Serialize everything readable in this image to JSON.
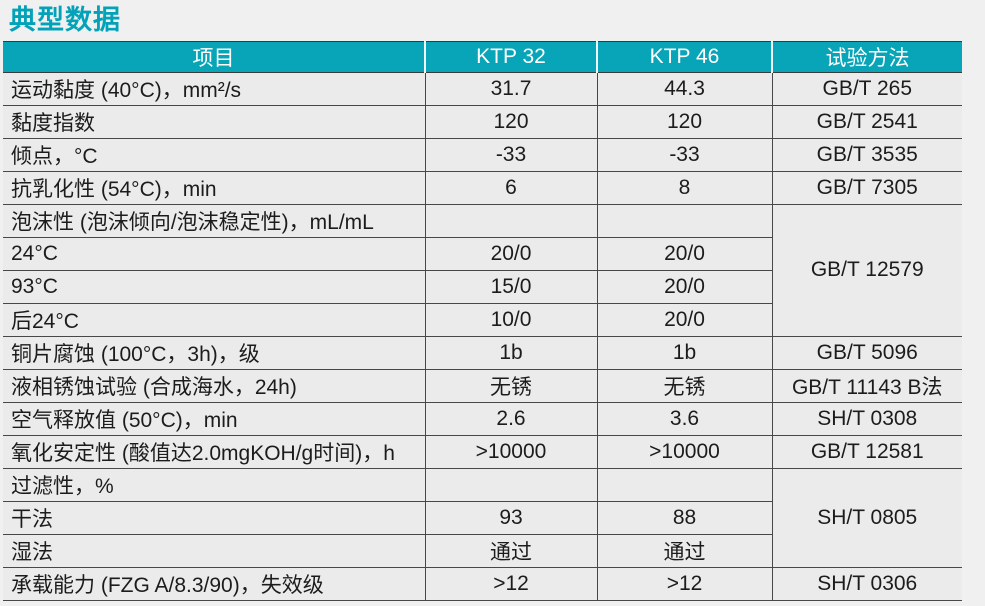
{
  "page": {
    "title": "典型数据"
  },
  "colors": {
    "accent_teal": "#08a4b8",
    "title_teal": "#04a2b8",
    "header_text": "#ffffff",
    "body_text": "#1c1c1c",
    "grid_line": "#47484a",
    "cell_bg": "#ebebeb",
    "page_bg": "#f0f0f0"
  },
  "table": {
    "columns": [
      "项目",
      "KTP 32",
      "KTP 46",
      "试验方法"
    ],
    "rows": [
      {
        "item": "运动黏度 (40°C)，mm²/s",
        "ktp32": "31.7",
        "ktp46": "44.3",
        "method": "GB/T 265"
      },
      {
        "item": "黏度指数",
        "ktp32": "120",
        "ktp46": "120",
        "method": "GB/T 2541"
      },
      {
        "item": "倾点，°C",
        "ktp32": "-33",
        "ktp46": "-33",
        "method": "GB/T 3535"
      },
      {
        "item": "抗乳化性 (54°C)，min",
        "ktp32": "6",
        "ktp46": "8",
        "method": "GB/T 7305"
      },
      {
        "item": "泡沫性 (泡沫倾向/泡沫稳定性)，mL/mL",
        "ktp32": "",
        "ktp46": "",
        "method": "GB/T 12579",
        "method_rowspan": 4
      },
      {
        "item": "24°C",
        "ktp32": "20/0",
        "ktp46": "20/0",
        "method": null
      },
      {
        "item": "93°C",
        "ktp32": "15/0",
        "ktp46": "20/0",
        "method": null
      },
      {
        "item": "后24°C",
        "ktp32": "10/0",
        "ktp46": "20/0",
        "method": null
      },
      {
        "item": "铜片腐蚀 (100°C，3h)，级",
        "ktp32": "1b",
        "ktp46": "1b",
        "method": "GB/T 5096"
      },
      {
        "item": "液相锈蚀试验 (合成海水，24h)",
        "ktp32": "无锈",
        "ktp46": "无锈",
        "method": "GB/T 11143 B法"
      },
      {
        "item": "空气释放值 (50°C)，min",
        "ktp32": "2.6",
        "ktp46": "3.6",
        "method": "SH/T 0308"
      },
      {
        "item": "氧化安定性 (酸值达2.0mgKOH/g时间)，h",
        "ktp32": ">10000",
        "ktp46": ">10000",
        "method": "GB/T 12581"
      },
      {
        "item": "过滤性，%",
        "ktp32": "",
        "ktp46": "",
        "method": "SH/T 0805",
        "method_rowspan": 3
      },
      {
        "item": "干法",
        "ktp32": "93",
        "ktp46": "88",
        "method": null
      },
      {
        "item": "湿法",
        "ktp32": "通过",
        "ktp46": "通过",
        "method": null
      },
      {
        "item": "承载能力 (FZG A/8.3/90)，失效级",
        "ktp32": ">12",
        "ktp46": ">12",
        "method": "SH/T 0306"
      }
    ]
  }
}
